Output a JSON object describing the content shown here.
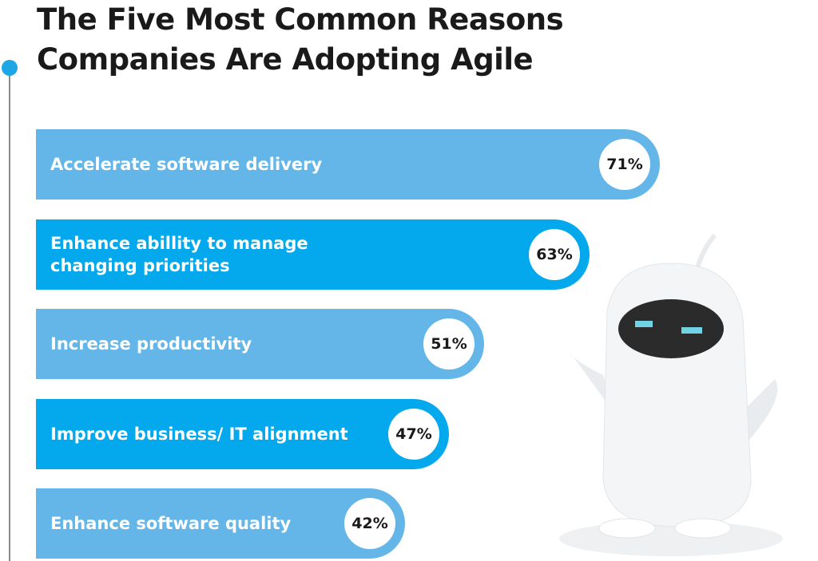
{
  "chart_data": {
    "type": "bar",
    "orientation": "horizontal",
    "title": "The Five Most Common Reasons Companies Are Adopting Agile",
    "categories": [
      "Accelerate software delivery",
      "Enhance abillity to manage changing priorities",
      "Increase productivity",
      "Improve business/ IT alignment",
      "Enhance software quality"
    ],
    "values": [
      71,
      63,
      51,
      47,
      42
    ],
    "value_labels": [
      "71%",
      "63%",
      "51%",
      "47%",
      "42%"
    ],
    "colors": [
      "#64b6e8",
      "#03a9ec",
      "#64b6e8",
      "#03a9ec",
      "#64b6e8"
    ]
  }
}
